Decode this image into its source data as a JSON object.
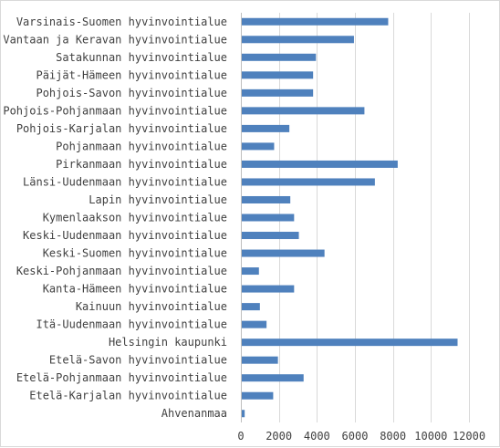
{
  "chart_data": {
    "type": "bar",
    "orientation": "horizontal",
    "categories": [
      "Varsinais-Suomen hyvinvointialue",
      "Vantaan ja Keravan hyvinvointialue",
      "Satakunnan hyvinvointialue",
      "Päijät-Hämeen hyvinvointialue",
      "Pohjois-Savon hyvinvointialue",
      "Pohjois-Pohjanmaan hyvinvointialue",
      "Pohjois-Karjalan hyvinvointialue",
      "Pohjanmaan hyvinvointialue",
      "Pirkanmaan hyvinvointialue",
      "Länsi-Uudenmaan hyvinvointialue",
      "Lapin hyvinvointialue",
      "Kymenlaakson hyvinvointialue",
      "Keski-Uudenmaan hyvinvointialue",
      "Keski-Suomen hyvinvointialue",
      "Keski-Pohjanmaan hyvinvointialue",
      "Kanta-Hämeen hyvinvointialue",
      "Kainuun hyvinvointialue",
      "Itä-Uudenmaan hyvinvointialue",
      "Helsingin kaupunki",
      "Etelä-Savon hyvinvointialue",
      "Etelä-Pohjanmaan hyvinvointialue",
      "Etelä-Karjalan hyvinvointialue",
      "Ahvenanmaa"
    ],
    "values": [
      7750,
      5950,
      3950,
      3800,
      3800,
      6500,
      2550,
      1750,
      8250,
      7050,
      2600,
      2800,
      3050,
      4400,
      950,
      2800,
      1000,
      1350,
      11400,
      1950,
      3300,
      1700,
      200
    ],
    "xlim": [
      0,
      12000
    ],
    "xticks": [
      0,
      2000,
      4000,
      6000,
      8000,
      10000,
      12000
    ],
    "xtick_labels": [
      "0",
      "2000",
      "4000",
      "6000",
      "8000",
      "10000",
      "12000"
    ],
    "grid": true,
    "legend": "none",
    "title": "",
    "xlabel": "",
    "ylabel": "",
    "colors": {
      "bar": "#4f81bd",
      "grid": "#d9d9d9",
      "axis": "#bfbfbf",
      "text": "#404040",
      "frame": "#d9d9d9"
    }
  }
}
